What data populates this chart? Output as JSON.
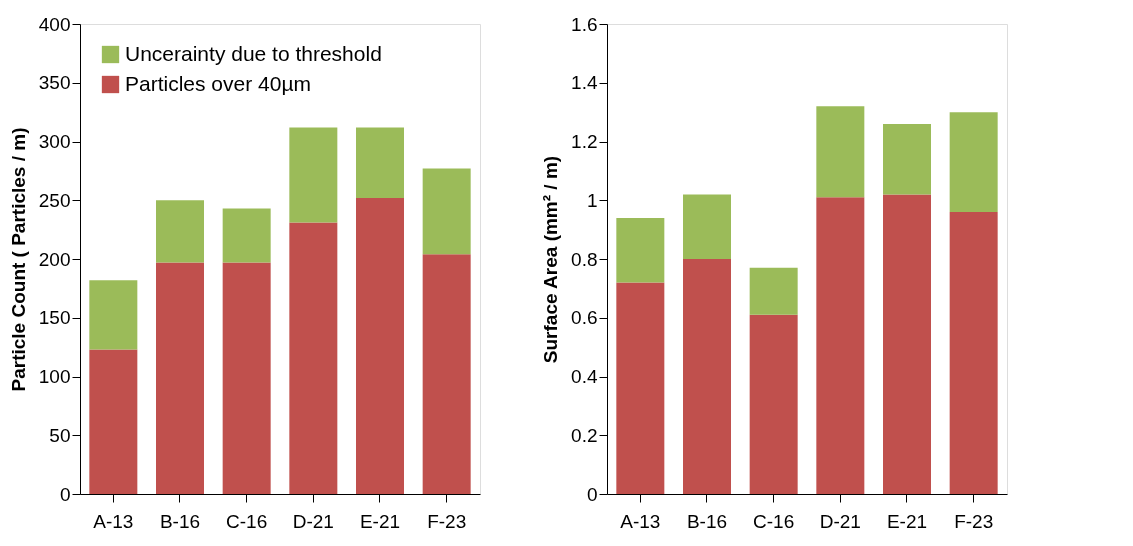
{
  "chart_data": [
    {
      "type": "bar",
      "stacked": true,
      "ylabel": "Particle Count ( Particles / m)",
      "categories": [
        "A-13",
        "B-16",
        "C-16",
        "D-21",
        "E-21",
        "F-23"
      ],
      "ylim": [
        0,
        400
      ],
      "yticks": [
        0,
        50,
        100,
        150,
        200,
        250,
        300,
        350,
        400
      ],
      "grid": false,
      "legend": "top left",
      "series": [
        {
          "name": "Particles over 40µm",
          "color": "#c0504d",
          "values": [
            123,
            197,
            197,
            231,
            252,
            204
          ]
        },
        {
          "name": "Uncerainty due to threshold",
          "color": "#9bbb59",
          "values": [
            59,
            53,
            46,
            81,
            60,
            73
          ]
        }
      ]
    },
    {
      "type": "bar",
      "stacked": true,
      "ylabel": "Surface Area (mm² / m)",
      "categories": [
        "A-13",
        "B-16",
        "C-16",
        "D-21",
        "E-21",
        "F-23"
      ],
      "ylim": [
        0,
        1.6
      ],
      "yticks": [
        0,
        0.2,
        0.4,
        0.6,
        0.8,
        1,
        1.2,
        1.4,
        1.6
      ],
      "grid": false,
      "legend": "top left",
      "series": [
        {
          "name": "Particles over 40µm",
          "color": "#c0504d",
          "values": [
            0.72,
            0.8,
            0.61,
            1.01,
            1.02,
            0.96
          ]
        },
        {
          "name": "Uncerainty due to threshold",
          "color": "#9bbb59",
          "values": [
            0.22,
            0.22,
            0.16,
            0.31,
            0.24,
            0.34
          ]
        }
      ]
    }
  ]
}
